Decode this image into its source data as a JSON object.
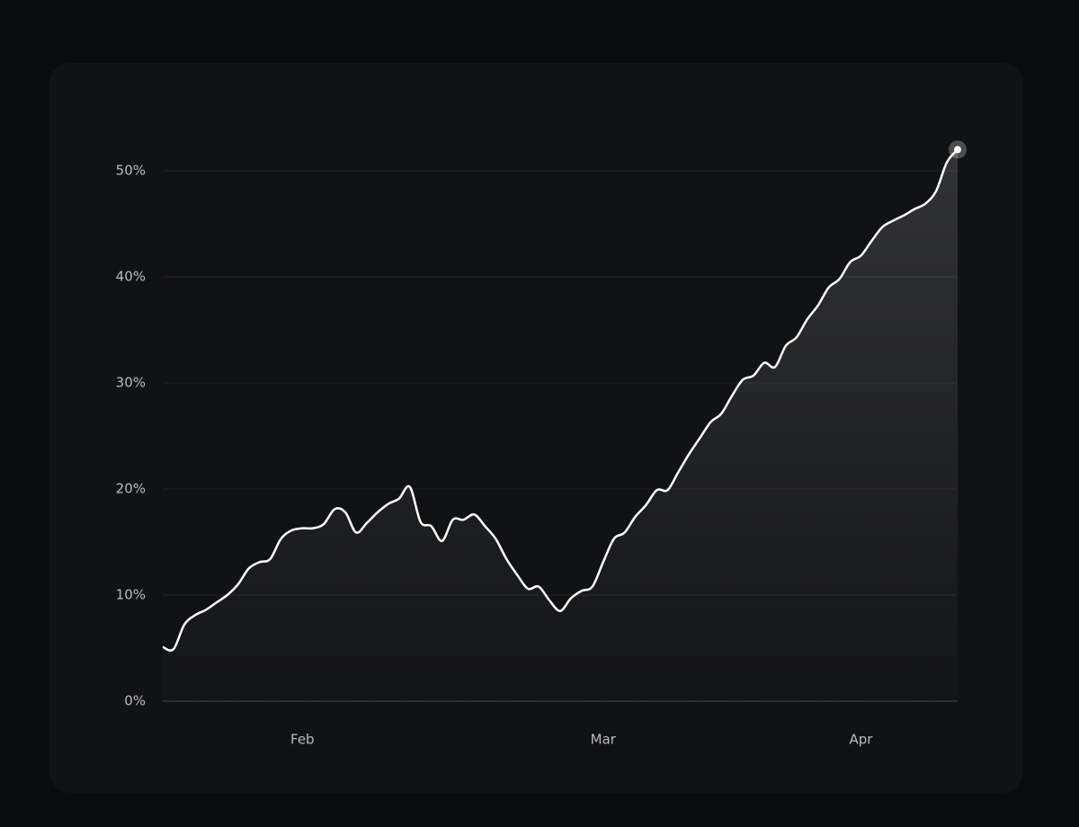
{
  "chart_data": {
    "type": "line",
    "area": true,
    "color": "#ffffff",
    "grid": true,
    "categories": [
      null,
      null,
      null,
      null,
      null,
      null,
      null,
      null,
      null,
      null,
      null,
      null,
      null,
      "Feb",
      null,
      null,
      null,
      null,
      null,
      null,
      null,
      null,
      null,
      null,
      null,
      null,
      null,
      null,
      null,
      null,
      null,
      null,
      null,
      null,
      null,
      null,
      null,
      null,
      null,
      null,
      null,
      "Mar",
      null,
      null,
      null,
      null,
      null,
      null,
      null,
      null,
      null,
      null,
      null,
      null,
      null,
      null,
      null,
      null,
      null,
      null,
      null,
      null,
      null,
      null,
      null,
      "Apr",
      null,
      null,
      null,
      null,
      null,
      null,
      null,
      null,
      null
    ],
    "values": [
      5.1,
      4.9,
      7.2,
      8.1,
      8.6,
      9.3,
      10.0,
      11.0,
      12.5,
      13.1,
      13.4,
      15.3,
      16.1,
      16.3,
      16.3,
      16.7,
      18.1,
      17.8,
      15.9,
      16.8,
      17.8,
      18.6,
      19.1,
      20.2,
      16.9,
      16.5,
      15.1,
      17.1,
      17.1,
      17.6,
      16.5,
      15.3,
      13.4,
      11.9,
      10.6,
      10.8,
      9.5,
      8.5,
      9.7,
      10.4,
      10.8,
      13.1,
      15.3,
      15.9,
      17.4,
      18.5,
      19.9,
      19.9,
      21.6,
      23.3,
      24.8,
      26.3,
      27.1,
      28.8,
      30.3,
      30.7,
      31.9,
      31.5,
      33.5,
      34.3,
      36.0,
      37.3,
      39.0,
      39.8,
      41.4,
      42.0,
      43.4,
      44.7,
      45.3,
      45.8,
      46.4,
      46.9,
      48.1,
      50.8,
      52.0
    ],
    "ylim": [
      0,
      55
    ],
    "yticks": [
      {
        "value": 0,
        "label": "0%"
      },
      {
        "value": 10,
        "label": "10%"
      },
      {
        "value": 20,
        "label": "20%"
      },
      {
        "value": 30,
        "label": "30%"
      },
      {
        "value": 40,
        "label": "40%"
      },
      {
        "value": 50,
        "label": "50%"
      }
    ]
  }
}
